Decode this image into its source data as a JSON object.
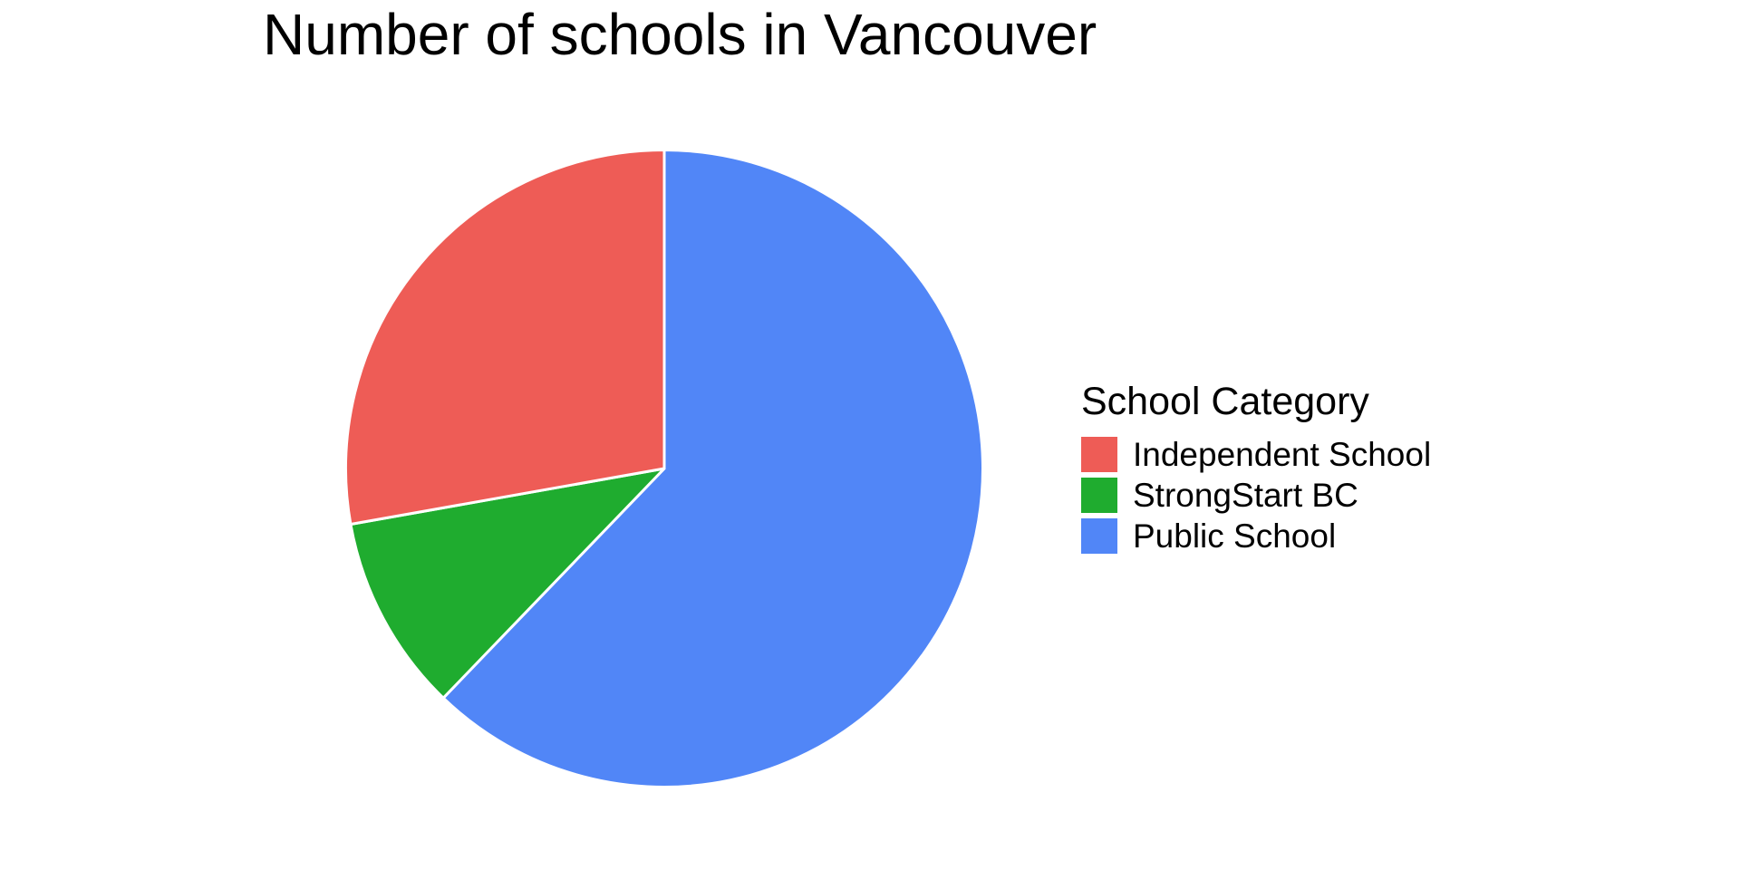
{
  "chart_data": {
    "type": "pie",
    "title": "Number of schools in Vancouver",
    "background_color": "#FFFFFF",
    "values_shown_on_chart": false,
    "legend": {
      "title": "School Category",
      "position": "right"
    },
    "slices": [
      {
        "label": "Independent School",
        "color": "#EE5C56",
        "percent": 27.8
      },
      {
        "label": "StrongStart BC",
        "color": "#1FAC2F",
        "percent": 10.0
      },
      {
        "label": "Public School",
        "color": "#5186F7",
        "percent": 62.2
      }
    ],
    "draw": {
      "start_angle_deg": 0,
      "direction": "clockwise",
      "order": [
        "Public School",
        "StrongStart BC",
        "Independent School"
      ],
      "slice_border_color": "#FFFFFF",
      "slice_border_width": 3
    }
  }
}
